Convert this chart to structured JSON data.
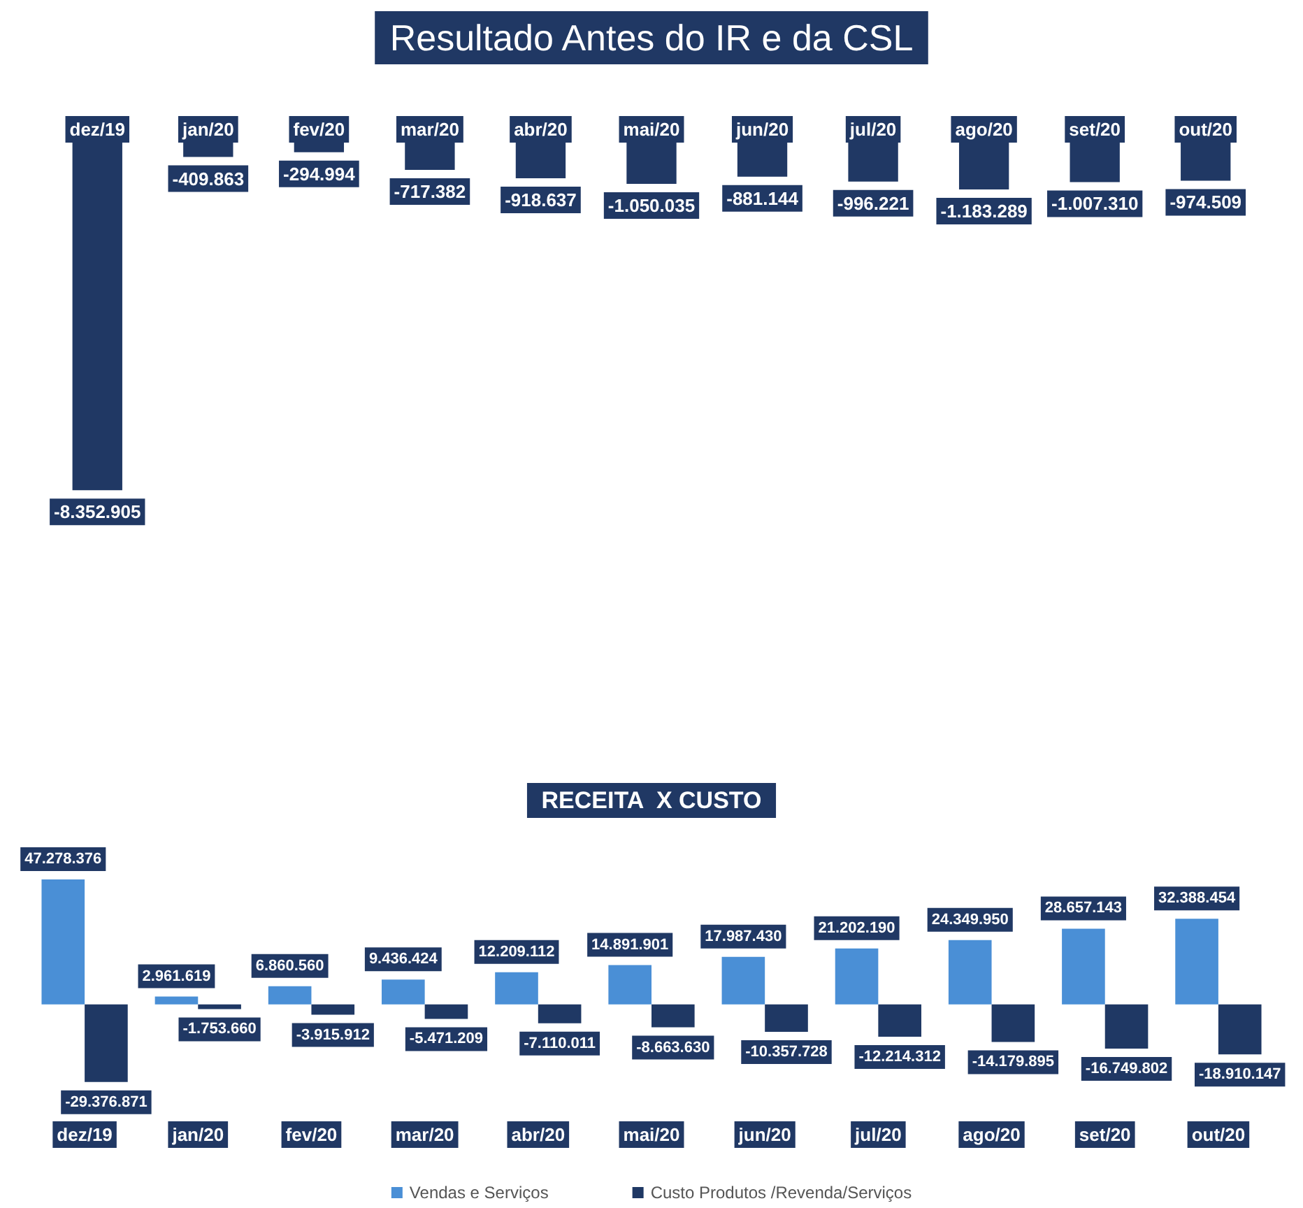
{
  "chart_data": [
    {
      "type": "bar",
      "title": "Resultado Antes do IR e da CSL",
      "categories": [
        "dez/19",
        "jan/20",
        "fev/20",
        "mar/20",
        "abr/20",
        "mai/20",
        "jun/20",
        "jul/20",
        "ago/20",
        "set/20",
        "out/20"
      ],
      "values": [
        -8352905,
        -409863,
        -294994,
        -717382,
        -918637,
        -1050035,
        -881144,
        -996221,
        -1183289,
        -1007310,
        -974509
      ],
      "value_labels": [
        "-8.352.905",
        "-409.863",
        "-294.994",
        "-717.382",
        "-918.637",
        "-1.050.035",
        "-881.144",
        "-996.221",
        "-1.183.289",
        "-1.007.310",
        "-974.509"
      ],
      "color": "#203864"
    },
    {
      "type": "bar",
      "title": "RECEITA  X CUSTO",
      "categories": [
        "dez/19",
        "jan/20",
        "fev/20",
        "mar/20",
        "abr/20",
        "mai/20",
        "jun/20",
        "jul/20",
        "ago/20",
        "set/20",
        "out/20"
      ],
      "series": [
        {
          "name": "Vendas e Serviços",
          "color": "#4a8fd6",
          "values": [
            47278376,
            2961619,
            6860560,
            9436424,
            12209112,
            14891901,
            17987430,
            21202190,
            24349950,
            28657143,
            32388454
          ],
          "value_labels": [
            "47.278.376",
            "2.961.619",
            "6.860.560",
            "9.436.424",
            "12.209.112",
            "14.891.901",
            "17.987.430",
            "21.202.190",
            "24.349.950",
            "28.657.143",
            "32.388.454"
          ]
        },
        {
          "name": "Custo Produtos /Revenda/Serviços",
          "color": "#1f3864",
          "values": [
            -29376871,
            -1753660,
            -3915912,
            -5471209,
            -7110011,
            -8663630,
            -10357728,
            -12214312,
            -14179895,
            -16749802,
            -18910147
          ],
          "value_labels": [
            "-29.376.871",
            "-1.753.660",
            "-3.915.912",
            "-5.471.209",
            "-7.110.011",
            "-8.663.630",
            "-10.357.728",
            "-12.214.312",
            "-14.179.895",
            "-16.749.802",
            "-18.910.147"
          ]
        }
      ],
      "legend": "bottom"
    }
  ]
}
